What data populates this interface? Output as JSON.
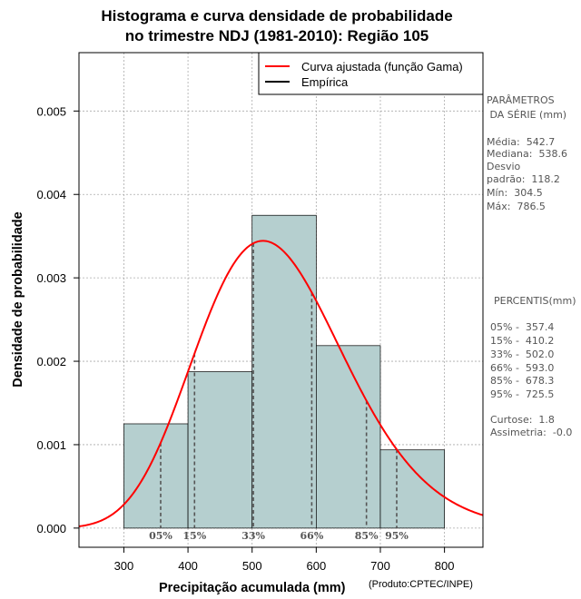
{
  "chart_data": {
    "type": "histogram",
    "title_line1": "Histograma e curva densidade de probabilidade",
    "title_line2": "no trimestre NDJ (1981-2010): Região 105",
    "xlabel": "Precipitação acumulada (mm)",
    "ylabel": "Densidade de probabilidade",
    "credit": "(Produto:CPTEC/INPE)",
    "xlim": [
      230,
      860
    ],
    "ylim": [
      -0.00023,
      0.0057
    ],
    "x_ticks": [
      300,
      400,
      500,
      600,
      700,
      800
    ],
    "y_ticks": [
      0.0,
      0.001,
      0.002,
      0.003,
      0.004,
      0.005
    ],
    "y_tick_labels": [
      "0.000",
      "0.001",
      "0.002",
      "0.003",
      "0.004",
      "0.005"
    ],
    "bins": [
      {
        "from": 300,
        "to": 400,
        "density": 0.00125
      },
      {
        "from": 400,
        "to": 500,
        "density": 0.001875
      },
      {
        "from": 500,
        "to": 600,
        "density": 0.00375
      },
      {
        "from": 600,
        "to": 700,
        "density": 0.0021875
      },
      {
        "from": 700,
        "to": 800,
        "density": 0.0009375
      }
    ],
    "gamma_fit": {
      "mean": 542.7,
      "sd": 118.2
    },
    "legend": [
      {
        "label": "Curva ajustada (função Gama)",
        "color": "#ff0000"
      },
      {
        "label": "Empírica",
        "color": "#000000"
      }
    ],
    "percentile_markers": [
      {
        "label": "05%",
        "value": 357.4
      },
      {
        "label": "15%",
        "value": 410.2
      },
      {
        "label": "33%",
        "value": 502.0
      },
      {
        "label": "66%",
        "value": 593.0
      },
      {
        "label": "85%",
        "value": 678.3
      },
      {
        "label": "95%",
        "value": 725.5
      }
    ],
    "colors": {
      "bar_fill": "#b5cfcf",
      "curve": "#ff0000",
      "grid": "#aaaaaa",
      "marker": "#555555"
    }
  },
  "stats_panel": {
    "header1": "PARÂMETROS",
    "header2": " DA SÉRIE (mm)",
    "lines": [
      "Média:  542.7",
      "Mediana:  538.6",
      "Desvio",
      "padrão:  118.2",
      "Mín:  304.5",
      "Máx:  786.5"
    ]
  },
  "percentiles_panel": {
    "header": "PERCENTIS(mm)",
    "lines": [
      "05% -  357.4",
      "15% -  410.2",
      "33% -  502.0",
      "66% -  593.0",
      "85% -  678.3",
      "95% -  725.5"
    ]
  },
  "shape_panel": {
    "lines": [
      "Curtose:  1.8",
      "Assimetria:  -0.0"
    ]
  }
}
